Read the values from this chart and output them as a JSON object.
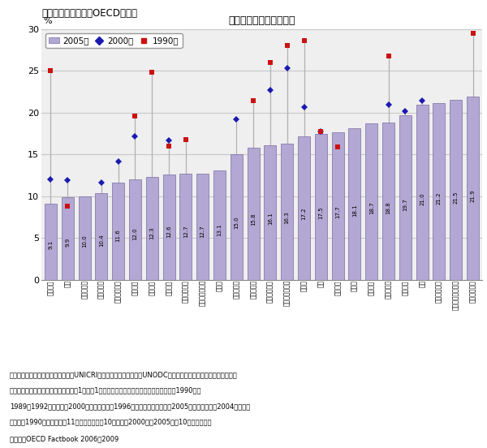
{
  "title_top": "犯罪率の国際比較（OECD諸国）",
  "title_chart": "犯罪被害者数の対人口比",
  "ylabel_text": "%",
  "categories": [
    "スペイン",
    "日本",
    "ハンガリー",
    "ポルトガル",
    "オーストリア",
    "フランス",
    "ギリシャ",
    "イタリア",
    "フィンランド",
    "ルクセンブルク",
    "ドイツ",
    "ポーランド",
    "ノルウェー",
    "スウェーデン",
    "オーストラリア",
    "カナダ",
    "米国",
    "ベルギー",
    "スイス",
    "メキシコ",
    "デンマーク",
    "オランダ",
    "英国",
    "アイスランド",
    "ニュージーランド",
    "アイルランド"
  ],
  "values_2005": [
    9.1,
    9.9,
    10.0,
    10.4,
    11.6,
    12.0,
    12.3,
    12.6,
    12.7,
    12.7,
    13.1,
    15.0,
    15.8,
    16.1,
    16.3,
    17.2,
    17.5,
    17.7,
    18.1,
    18.7,
    18.8,
    19.7,
    21.0,
    21.2,
    21.5,
    21.9
  ],
  "values_2000": [
    12.0,
    11.9,
    null,
    11.6,
    14.2,
    17.2,
    null,
    16.7,
    null,
    null,
    null,
    19.2,
    null,
    22.7,
    25.3,
    20.7,
    17.8,
    null,
    null,
    null,
    21.0,
    20.2,
    21.4,
    null,
    null,
    null
  ],
  "values_1990": [
    25.0,
    8.8,
    null,
    null,
    null,
    19.6,
    24.8,
    16.0,
    16.8,
    null,
    null,
    null,
    21.4,
    26.0,
    28.0,
    28.6,
    17.8,
    15.9,
    null,
    null,
    26.8,
    null,
    null,
    null,
    null,
    29.5
  ],
  "bar_color": "#b3a8d4",
  "bar_edge_color": "#7b6ba0",
  "dot_2000_color": "#1a1ab0",
  "dot_1990_color": "#cc1111",
  "line_color": "#b0b0b0",
  "ylim_max": 30,
  "yticks": [
    0,
    5,
    10,
    15,
    20,
    25,
    30
  ],
  "grid_color": "#c8c8c8",
  "plot_bg": "#efefef",
  "note_line1": "（注）国連地域間犯罪司法研究所（UNICRI）と国連薬物・犯罪局（UNODC）によって実施された「国際犯罪被害",
  "note_line2": "者調査」による。犯罪被害者は調査前1年間に1回以上犯罪の犠牲になったと回答した者。1990年は",
  "note_line3": "1989～1992年の結果、2000年は同年ないし1996年（オーストリア）、2005年は同年ないし2004年の結果",
  "note_line4": "である。1990年は在来型の11犯罪（ドイツは10犯罪）、2000年・2005年は10犯罪が対象。",
  "source_line": "（資料）OECD Factbook 2006・2009"
}
